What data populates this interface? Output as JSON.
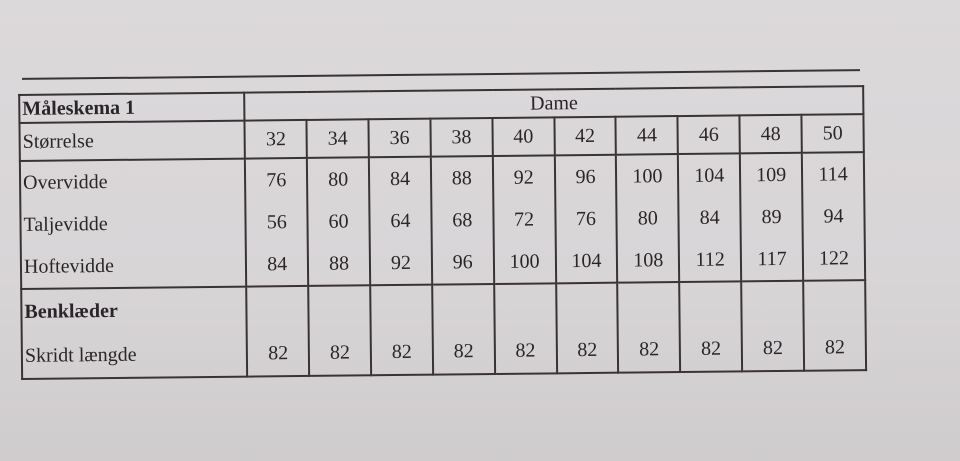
{
  "table": {
    "title": "Måleskema 1",
    "group_header": "Dame",
    "size_label": "Størrelse",
    "sizes": [
      "32",
      "34",
      "36",
      "38",
      "40",
      "42",
      "44",
      "46",
      "48",
      "50"
    ],
    "measure_rows": [
      {
        "label": "Overvidde",
        "values": [
          "76",
          "80",
          "84",
          "88",
          "92",
          "96",
          "100",
          "104",
          "109",
          "114"
        ]
      },
      {
        "label": "Taljevidde",
        "values": [
          "56",
          "60",
          "64",
          "68",
          "72",
          "76",
          "80",
          "84",
          "89",
          "94"
        ]
      },
      {
        "label": "Hoftevidde",
        "values": [
          "84",
          "88",
          "92",
          "96",
          "100",
          "104",
          "108",
          "112",
          "117",
          "122"
        ]
      }
    ],
    "section_label": "Benklæder",
    "inseam_row": {
      "label": "Skridt længde",
      "values": [
        "82",
        "82",
        "82",
        "82",
        "82",
        "82",
        "82",
        "82",
        "82",
        "82"
      ]
    }
  }
}
